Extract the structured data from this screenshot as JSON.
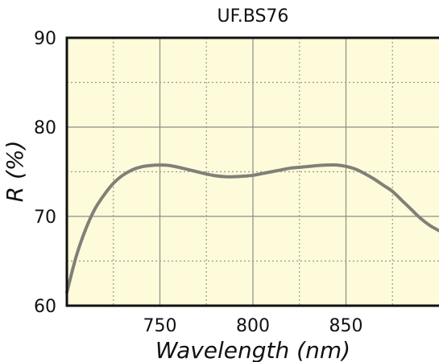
{
  "chart_data": {
    "type": "line",
    "title": "UF.BS76",
    "xlabel": "Wavelength (nm)",
    "ylabel_italic": "R",
    "ylabel_rest": " (%)",
    "xlim": [
      700,
      900
    ],
    "ylim": [
      60,
      90
    ],
    "xticks": [
      750,
      800,
      850
    ],
    "yticks": [
      60,
      70,
      80,
      90
    ],
    "x_minor_gridlines": [
      725,
      775,
      825,
      875
    ],
    "y_minor_gridlines": [
      65,
      75,
      85
    ],
    "grid": true,
    "colors": {
      "background": "#fdfbd9",
      "line": "#808078",
      "major_grid": "#8c8c8c",
      "minor_grid": "#999999",
      "frame": "#111111"
    },
    "series": [
      {
        "x": [
          700,
          705,
          710,
          715,
          720,
          725,
          730,
          735,
          740,
          745,
          750,
          755,
          760,
          765,
          770,
          775,
          780,
          785,
          790,
          795,
          800,
          805,
          810,
          815,
          820,
          825,
          830,
          835,
          840,
          845,
          850,
          855,
          860,
          865,
          870,
          875,
          880,
          885,
          890,
          895,
          900
        ],
        "y": [
          61.5,
          65.5,
          68.5,
          70.8,
          72.4,
          73.7,
          74.6,
          75.2,
          75.55,
          75.7,
          75.75,
          75.7,
          75.5,
          75.25,
          75.0,
          74.75,
          74.55,
          74.45,
          74.45,
          74.5,
          74.6,
          74.8,
          75.0,
          75.2,
          75.4,
          75.5,
          75.6,
          75.7,
          75.75,
          75.75,
          75.6,
          75.3,
          74.8,
          74.2,
          73.5,
          72.8,
          71.8,
          70.8,
          69.8,
          69.0,
          68.4
        ]
      }
    ]
  }
}
